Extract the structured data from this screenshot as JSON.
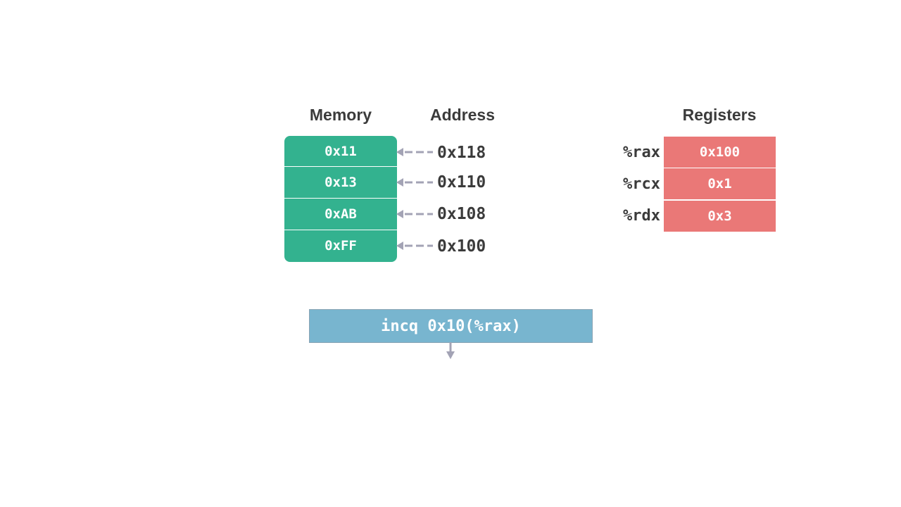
{
  "headings": {
    "memory": "Memory",
    "address": "Address",
    "registers": "Registers"
  },
  "memory": [
    {
      "value": "0x11",
      "address": "0x118"
    },
    {
      "value": "0x13",
      "address": "0x110"
    },
    {
      "value": "0xAB",
      "address": "0x108"
    },
    {
      "value": "0xFF",
      "address": "0x100"
    }
  ],
  "registers": [
    {
      "name": "%rax",
      "value": "0x100"
    },
    {
      "name": "%rcx",
      "value": "0x1"
    },
    {
      "name": "%rdx",
      "value": "0x3"
    }
  ],
  "instruction": "incq 0x10(%rax)",
  "colors": {
    "memory": "#33b28f",
    "register": "#ea7877",
    "instruction": "#78b5cf",
    "arrow": "#a3a3b5"
  }
}
